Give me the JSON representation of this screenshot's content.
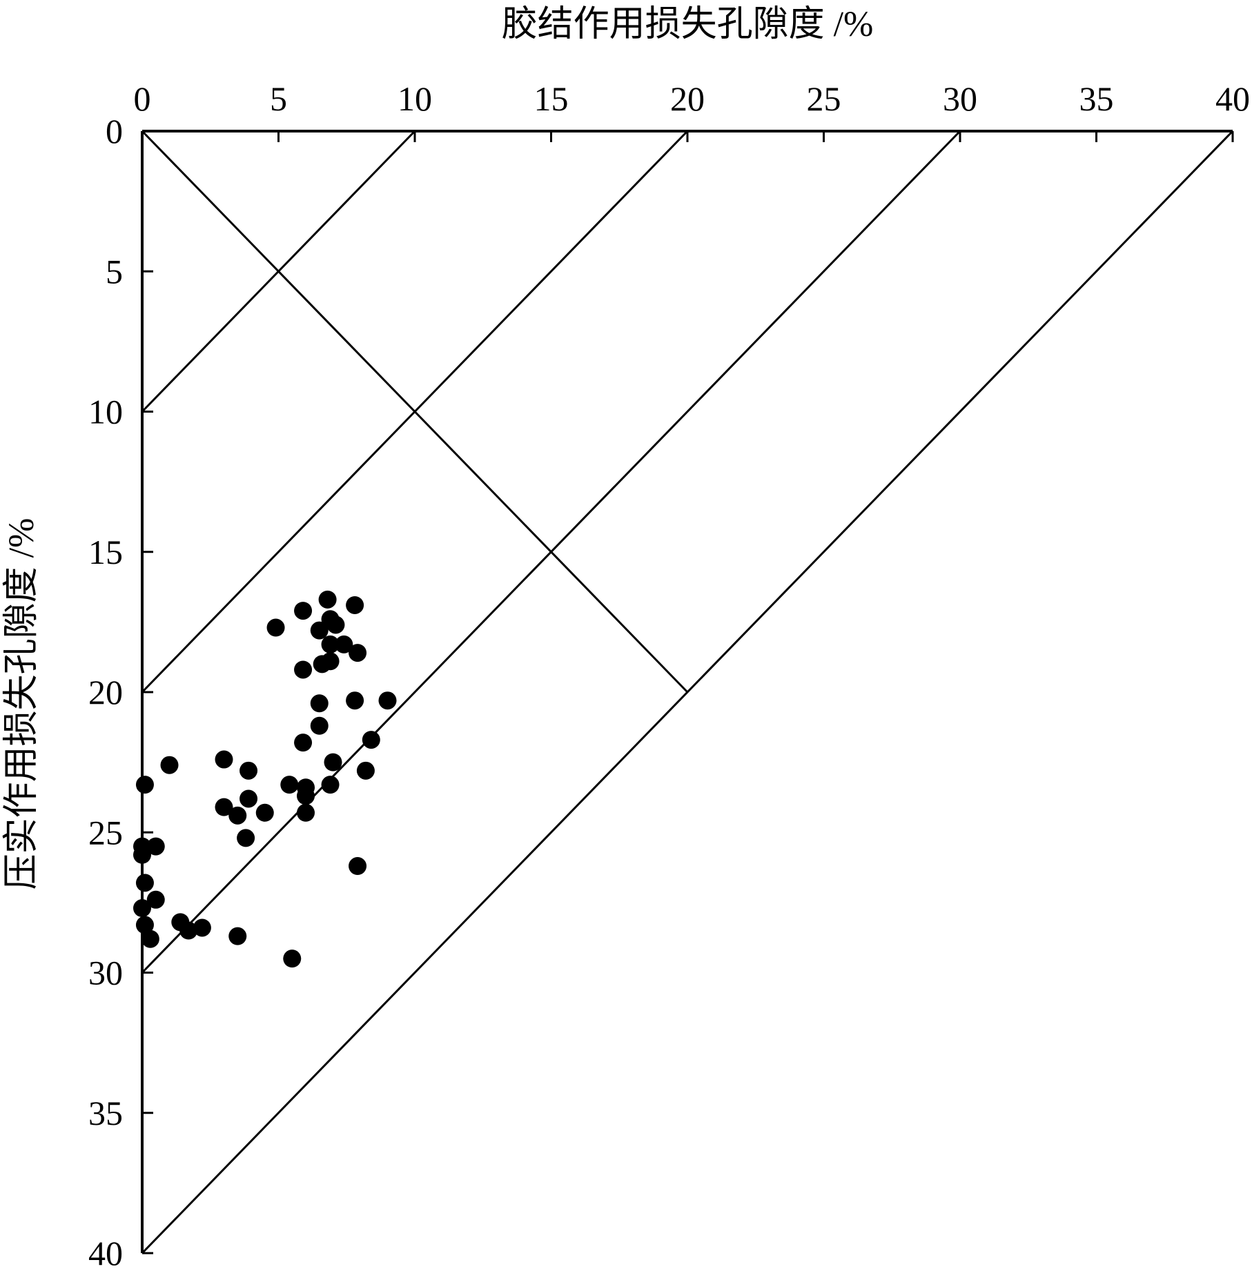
{
  "chart_data": {
    "type": "scatter",
    "xlabel": "胶结作用损失孔隙度 /%",
    "ylabel": "压实作用损失孔隙度 /%",
    "xlim": [
      0,
      40
    ],
    "ylim": [
      0,
      40
    ],
    "x_axis_position": "top",
    "y_axis_inverted": true,
    "grid": false,
    "legend": "none",
    "x_ticks": [
      "0",
      "5",
      "10",
      "15",
      "20",
      "25",
      "30",
      "35",
      "40"
    ],
    "y_ticks": [
      "0",
      "5",
      "10",
      "15",
      "20",
      "25",
      "30",
      "35",
      "40"
    ],
    "reference_lines": {
      "total_loss_contours": [
        10,
        20,
        30,
        40
      ],
      "equal_loss_diagonal": true
    },
    "marker_color": "#000000",
    "points": [
      {
        "x": 6.8,
        "y": 16.7
      },
      {
        "x": 7.8,
        "y": 16.9
      },
      {
        "x": 5.9,
        "y": 17.1
      },
      {
        "x": 6.9,
        "y": 17.4
      },
      {
        "x": 7.1,
        "y": 17.6
      },
      {
        "x": 4.9,
        "y": 17.7
      },
      {
        "x": 6.5,
        "y": 17.8
      },
      {
        "x": 6.9,
        "y": 18.3
      },
      {
        "x": 7.4,
        "y": 18.3
      },
      {
        "x": 7.9,
        "y": 18.6
      },
      {
        "x": 6.6,
        "y": 19.0
      },
      {
        "x": 6.9,
        "y": 18.9
      },
      {
        "x": 5.9,
        "y": 19.2
      },
      {
        "x": 6.5,
        "y": 20.4
      },
      {
        "x": 7.8,
        "y": 20.3
      },
      {
        "x": 9.0,
        "y": 20.3
      },
      {
        "x": 6.5,
        "y": 21.2
      },
      {
        "x": 8.4,
        "y": 21.7
      },
      {
        "x": 5.9,
        "y": 21.8
      },
      {
        "x": 3.0,
        "y": 22.4
      },
      {
        "x": 7.0,
        "y": 22.5
      },
      {
        "x": 1.0,
        "y": 22.6
      },
      {
        "x": 3.9,
        "y": 22.8
      },
      {
        "x": 8.2,
        "y": 22.8
      },
      {
        "x": 0.1,
        "y": 23.3
      },
      {
        "x": 5.4,
        "y": 23.3
      },
      {
        "x": 6.0,
        "y": 23.4
      },
      {
        "x": 6.9,
        "y": 23.3
      },
      {
        "x": 6.0,
        "y": 23.7
      },
      {
        "x": 3.9,
        "y": 23.8
      },
      {
        "x": 3.0,
        "y": 24.1
      },
      {
        "x": 3.5,
        "y": 24.4
      },
      {
        "x": 4.5,
        "y": 24.3
      },
      {
        "x": 6.0,
        "y": 24.3
      },
      {
        "x": 3.8,
        "y": 25.2
      },
      {
        "x": 0.0,
        "y": 25.5
      },
      {
        "x": 0.5,
        "y": 25.5
      },
      {
        "x": 0.0,
        "y": 25.8
      },
      {
        "x": 7.9,
        "y": 26.2
      },
      {
        "x": 0.1,
        "y": 26.8
      },
      {
        "x": 0.5,
        "y": 27.4
      },
      {
        "x": 0.0,
        "y": 27.7
      },
      {
        "x": 1.4,
        "y": 28.2
      },
      {
        "x": 0.1,
        "y": 28.3
      },
      {
        "x": 1.7,
        "y": 28.5
      },
      {
        "x": 2.2,
        "y": 28.4
      },
      {
        "x": 0.3,
        "y": 28.8
      },
      {
        "x": 3.5,
        "y": 28.7
      },
      {
        "x": 5.5,
        "y": 29.5
      }
    ]
  }
}
